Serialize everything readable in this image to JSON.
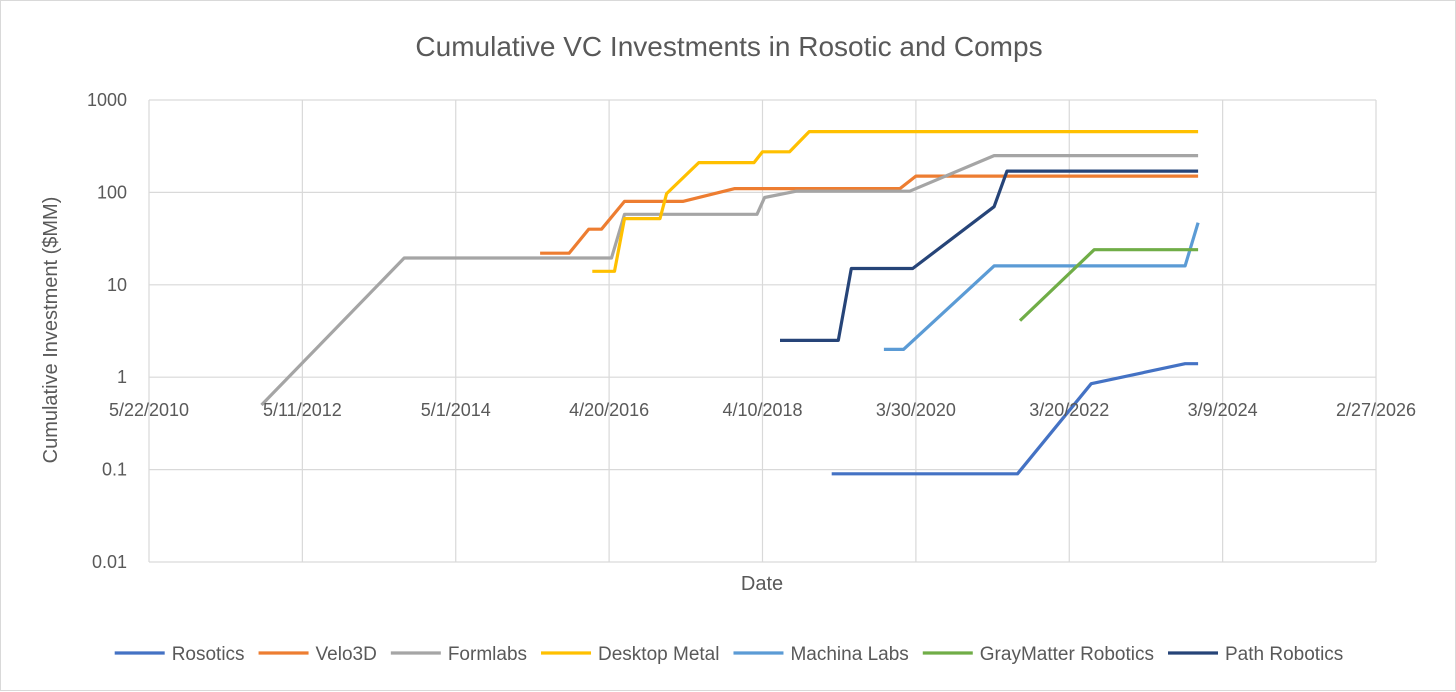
{
  "chart_data": {
    "type": "line",
    "title": "Cumulative VC Investments in Rosotic and Comps",
    "xlabel": "Date",
    "ylabel": "Cumulative Investment ($MM)",
    "yscale": "log",
    "ylim": [
      0.01,
      1000
    ],
    "xlim": [
      "2010-05-22",
      "2026-02-27"
    ],
    "grid": true,
    "legend_position": "bottom",
    "x_ticks": [
      "2010-05-22",
      "2012-05-11",
      "2014-05-01",
      "2016-04-20",
      "2018-04-10",
      "2020-03-30",
      "2022-03-20",
      "2024-03-09",
      "2026-02-27"
    ],
    "x_tick_labels": [
      "5/22/2010",
      "5/11/2012",
      "5/1/2014",
      "4/20/2016",
      "4/10/2018",
      "3/30/2020",
      "3/20/2022",
      "3/9/2024",
      "2/27/2026"
    ],
    "y_ticks": [
      0.01,
      0.1,
      1,
      10,
      100,
      1000
    ],
    "y_tick_labels": [
      "0.01",
      "0.1",
      "1",
      "10",
      "100",
      "1000"
    ],
    "series": [
      {
        "name": "Rosotics",
        "color": "#4472c4",
        "points": [
          [
            "2019-03-01",
            0.09
          ],
          [
            "2021-07-20",
            0.09
          ],
          [
            "2022-07-01",
            0.85
          ],
          [
            "2023-09-15",
            1.4
          ],
          [
            "2023-11-15",
            1.4
          ]
        ]
      },
      {
        "name": "Velo3D",
        "color": "#ed7d31",
        "points": [
          [
            "2015-06-01",
            22
          ],
          [
            "2015-10-15",
            22
          ],
          [
            "2016-01-15",
            40
          ],
          [
            "2016-03-15",
            40
          ],
          [
            "2016-07-01",
            80
          ],
          [
            "2017-04-01",
            80
          ],
          [
            "2017-12-01",
            110
          ],
          [
            "2020-01-15",
            110
          ],
          [
            "2020-03-30",
            150
          ],
          [
            "2023-11-15",
            150
          ]
        ]
      },
      {
        "name": "Formlabs",
        "color": "#a5a5a5",
        "points": [
          [
            "2011-11-01",
            0.5
          ],
          [
            "2013-09-01",
            19.5
          ],
          [
            "2016-05-01",
            19.5
          ],
          [
            "2016-07-01",
            58
          ],
          [
            "2018-03-15",
            58
          ],
          [
            "2018-04-20",
            88
          ],
          [
            "2018-09-15",
            103
          ],
          [
            "2020-03-01",
            103
          ],
          [
            "2021-04-01",
            250
          ],
          [
            "2023-11-15",
            250
          ]
        ]
      },
      {
        "name": "Desktop Metal",
        "color": "#ffc000",
        "points": [
          [
            "2016-02-01",
            14
          ],
          [
            "2016-05-15",
            14
          ],
          [
            "2016-07-01",
            52
          ],
          [
            "2016-12-15",
            52
          ],
          [
            "2017-01-15",
            97
          ],
          [
            "2017-06-15",
            210
          ],
          [
            "2018-03-01",
            210
          ],
          [
            "2018-04-10",
            275
          ],
          [
            "2018-08-15",
            275
          ],
          [
            "2018-11-15",
            455
          ],
          [
            "2023-11-15",
            455
          ]
        ]
      },
      {
        "name": "Machina Labs",
        "color": "#5b9bd5",
        "points": [
          [
            "2019-11-01",
            2
          ],
          [
            "2020-02-01",
            2
          ],
          [
            "2021-04-01",
            16
          ],
          [
            "2023-09-15",
            16
          ],
          [
            "2023-11-15",
            47
          ]
        ]
      },
      {
        "name": "GrayMatter Robotics",
        "color": "#70ad47",
        "points": [
          [
            "2021-08-01",
            4.1
          ],
          [
            "2022-07-15",
            24
          ],
          [
            "2023-11-15",
            24
          ]
        ]
      },
      {
        "name": "Path Robotics",
        "color": "#264478",
        "points": [
          [
            "2018-07-01",
            2.5
          ],
          [
            "2019-04-01",
            2.5
          ],
          [
            "2019-06-01",
            15
          ],
          [
            "2020-03-15",
            15
          ],
          [
            "2021-04-01",
            70
          ],
          [
            "2021-06-01",
            170
          ],
          [
            "2023-11-15",
            170
          ]
        ]
      }
    ]
  }
}
